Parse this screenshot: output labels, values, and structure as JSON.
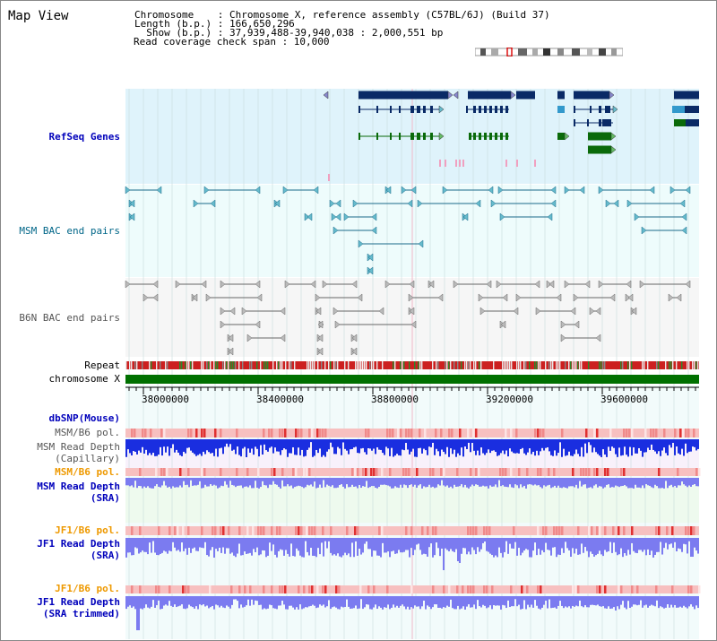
{
  "header": {
    "title": "Map View",
    "info_lines": [
      "Chromosome    : Chromosome X, reference assembly (C57BL/6J) (Build 37)",
      "Length (b.p.) : 166,650,296",
      "  Show (b.p.) : 37,939,488-39,940,038 : 2,000,551 bp",
      "Read coverage check span : 10,000"
    ]
  },
  "tracks": {
    "refseq": "RefSeq Genes",
    "msm_bac": "MSM BAC end pairs",
    "b6n_bac": "B6N BAC end pairs",
    "repeat": "Repeat",
    "chromosome": "chromosome X",
    "dbsnp": "dbSNP(Mouse)",
    "msm_b6_pol_1": "MSM/B6 pol.",
    "msm_depth_cap": "MSM Read Depth\n(Capillary)",
    "msm_b6_pol_2": "MSM/B6 pol.",
    "msm_depth_sra": "MSM Read Depth\n(SRA)",
    "jf1_b6_pol_1": "JF1/B6 pol.",
    "jf1_depth_sra": "JF1 Read Depth\n(SRA)",
    "jf1_b6_pol_2": "JF1/B6 pol.",
    "jf1_depth_trim": "JF1 Read Depth\n(SRA trimmed)"
  },
  "axis": {
    "ticks": [
      "38000000",
      "38400000",
      "38800000",
      "39200000",
      "39600000"
    ]
  },
  "colors": {
    "refseq_bg": "#dff3fb",
    "msm_bg": "#eefcfc",
    "b6n_bg": "#f6f6f6",
    "gene_dark": "#0a2a66",
    "gene_green": "#0a6a0a",
    "depth_blue": "#1a2ee0",
    "depth_light": "#7b7bf0",
    "chrom_green": "#007000"
  }
}
